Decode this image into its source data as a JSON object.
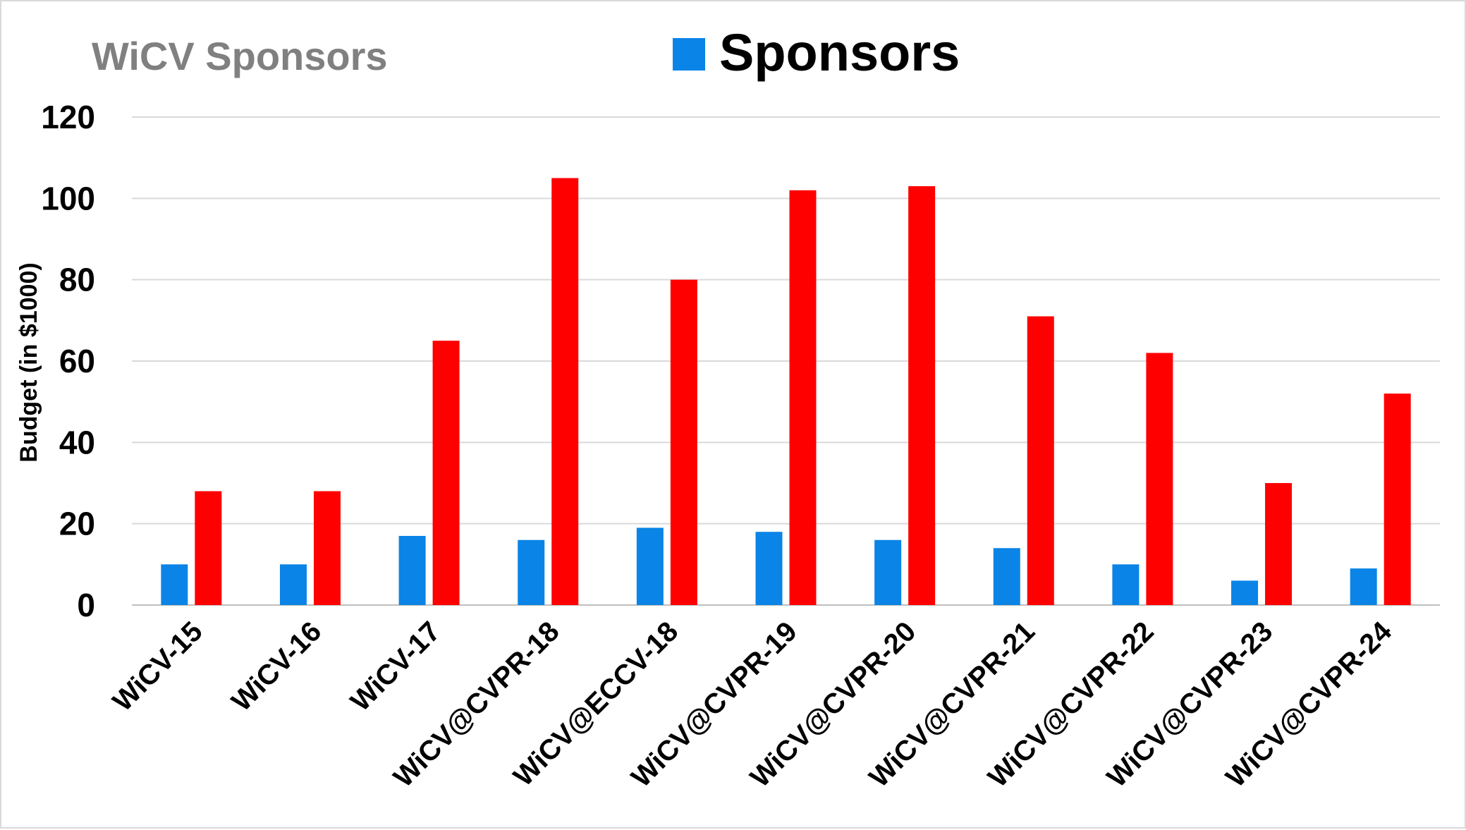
{
  "chart_data": {
    "type": "bar",
    "title": "WiCV Sponsors",
    "ylabel": "Budget (in $1000)",
    "xlabel": "",
    "ylim": [
      0,
      120
    ],
    "yticks": [
      0,
      20,
      40,
      60,
      80,
      100,
      120
    ],
    "grid": true,
    "legend": {
      "placement": "top-center",
      "entries": [
        {
          "label": "Sponsors",
          "color": "#0a84e6"
        }
      ]
    },
    "categories": [
      "WiCV-15",
      "WiCV-16",
      "WiCV-17",
      "WiCV@CVPR-18",
      "WiCV@ECCV-18",
      "WiCV@CVPR-19",
      "WiCV@CVPR-20",
      "WiCV@CVPR-21",
      "WiCV@CVPR-22",
      "WiCV@CVPR-23",
      "WiCV@CVPR-24"
    ],
    "series": [
      {
        "name": "Sponsors",
        "color": "#0a84e6",
        "values": [
          10,
          10,
          17,
          16,
          19,
          18,
          16,
          14,
          10,
          6,
          9
        ]
      },
      {
        "color": "#ff0000",
        "values": [
          28,
          28,
          65,
          105,
          80,
          102,
          103,
          71,
          62,
          30,
          52
        ]
      }
    ]
  }
}
